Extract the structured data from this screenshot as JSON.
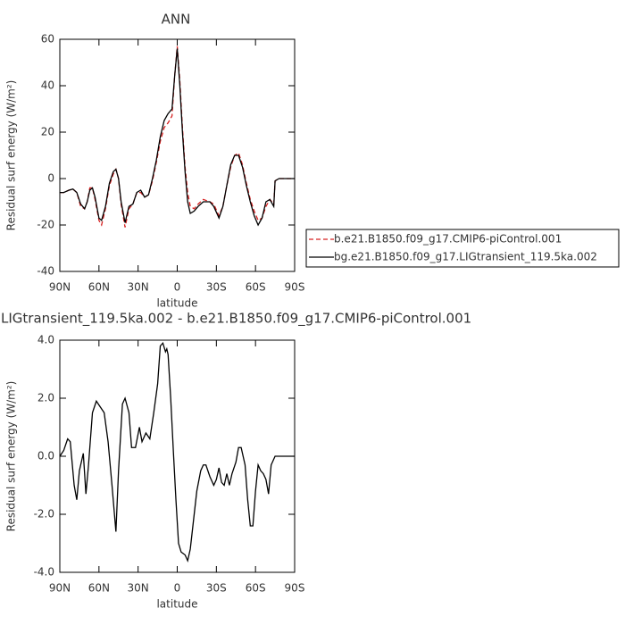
{
  "chart_data": [
    {
      "type": "line",
      "title": "ANN",
      "ylabel": "Residual surf energy (W/m²)",
      "xlabel": "latitude",
      "x": [
        90,
        87,
        83,
        80,
        77,
        74,
        71,
        69,
        67,
        65,
        63,
        60,
        58,
        55,
        52,
        49,
        47,
        45,
        43,
        40,
        37,
        34,
        31,
        28,
        25,
        22,
        19,
        16,
        13,
        10,
        7,
        4,
        2,
        0,
        -2,
        -4,
        -6,
        -8,
        -10,
        -13,
        -16,
        -20,
        -25,
        -28,
        -32,
        -35,
        -38,
        -41,
        -44,
        -47,
        -50,
        -53,
        -56,
        -59,
        -62,
        -65,
        -68,
        -71,
        -74,
        -75,
        -78,
        -84,
        -90
      ],
      "series": [
        {
          "name": "b.e21.B1850.f09_g17.CMIP6-piControl.001",
          "color": "#d62020",
          "line_style": "dashed",
          "values": [
            -6,
            -6,
            -5,
            -4.5,
            -6,
            -12,
            -13,
            -10,
            -4,
            -4,
            -9,
            -18,
            -20,
            -13,
            -3,
            2,
            4,
            0,
            -11,
            -21,
            -13,
            -11,
            -6,
            -6,
            -8,
            -7,
            -1,
            7,
            16,
            22,
            24,
            27,
            44,
            57,
            42,
            22,
            5,
            -6,
            -12,
            -13,
            -11,
            -9,
            -10,
            -11,
            -16,
            -12,
            -3,
            5,
            10,
            11,
            6,
            -2,
            -9,
            -14,
            -18,
            -17,
            -12,
            -9,
            -11,
            -1,
            0,
            0,
            0
          ]
        },
        {
          "name": "bg.e21.B1850.f09_g17.LIGtransient_119.5ka.002",
          "color": "#000000",
          "line_style": "solid",
          "values": [
            -6,
            -6,
            -5,
            -4.5,
            -6,
            -11,
            -13,
            -10,
            -5,
            -4,
            -8,
            -17,
            -18,
            -12,
            -2,
            3,
            4,
            0,
            -10,
            -19,
            -12,
            -11,
            -6,
            -5,
            -8,
            -7,
            0,
            8,
            18,
            25,
            28,
            30,
            44,
            56,
            40,
            20,
            3,
            -10,
            -15,
            -14,
            -12,
            -10,
            -10,
            -12,
            -17,
            -12,
            -3,
            6,
            10,
            10,
            5,
            -3,
            -10,
            -16,
            -20,
            -17,
            -10,
            -9,
            -12,
            -1,
            0,
            0,
            0
          ]
        }
      ],
      "xlim": [
        90,
        -90
      ],
      "xticks": [
        {
          "value": 90,
          "label": "90N"
        },
        {
          "value": 60,
          "label": "60N"
        },
        {
          "value": 30,
          "label": "30N"
        },
        0,
        {
          "value": -30,
          "label": "30S"
        },
        {
          "value": -60,
          "label": "60S"
        },
        {
          "value": -90,
          "label": "90S"
        }
      ],
      "ylim": [
        -40,
        60
      ],
      "yticks": [
        -40,
        -20,
        0,
        20,
        40,
        60
      ],
      "legend": "right"
    },
    {
      "type": "line",
      "title": "LIGtransient_119.5ka.002 - b.e21.B1850.f09_g17.CMIP6-piControl.001",
      "ylabel": "Residual surf energy (W/m²)",
      "xlabel": "latitude",
      "x": [
        90,
        87,
        84,
        82,
        79,
        77,
        75,
        72,
        70,
        68,
        65,
        62,
        59,
        56,
        53,
        50,
        47,
        45,
        42,
        40,
        37,
        35,
        32,
        29,
        27,
        24,
        21,
        18,
        15,
        13,
        11,
        9,
        8,
        7,
        5,
        3,
        1,
        -1,
        -3,
        -6,
        -8,
        -10,
        -13,
        -15,
        -18,
        -20,
        -22,
        -25,
        -28,
        -30,
        -32,
        -34,
        -36,
        -38,
        -40,
        -42,
        -45,
        -47,
        -49,
        -52,
        -54,
        -56,
        -58,
        -60,
        -62,
        -64,
        -66,
        -68,
        -70,
        -72,
        -75,
        -78,
        -90
      ],
      "values": [
        0,
        0.2,
        0.6,
        0.5,
        -1,
        -1.5,
        -0.5,
        0.1,
        -1.3,
        -0.3,
        1.5,
        1.9,
        1.7,
        1.5,
        0.5,
        -1,
        -2.6,
        -0.5,
        1.8,
        2,
        1.5,
        0.3,
        0.3,
        1,
        0.5,
        0.8,
        0.6,
        1.5,
        2.5,
        3.8,
        3.9,
        3.6,
        3.7,
        3.5,
        2,
        0.2,
        -1.5,
        -3,
        -3.3,
        -3.4,
        -3.6,
        -3.2,
        -2,
        -1.2,
        -0.5,
        -0.3,
        -0.3,
        -0.7,
        -1,
        -0.8,
        -0.4,
        -0.9,
        -1,
        -0.6,
        -1,
        -0.6,
        -0.2,
        0.3,
        0.3,
        -0.3,
        -1.5,
        -2.4,
        -2.4,
        -1.2,
        -0.3,
        -0.5,
        -0.6,
        -0.8,
        -1.3,
        -0.3,
        0,
        0,
        0
      ],
      "color": "#000000",
      "xlim": [
        90,
        -90
      ],
      "xticks": [
        {
          "value": 90,
          "label": "90N"
        },
        {
          "value": 60,
          "label": "60N"
        },
        {
          "value": 30,
          "label": "30N"
        },
        0,
        {
          "value": -30,
          "label": "30S"
        },
        {
          "value": -60,
          "label": "60S"
        },
        {
          "value": -90,
          "label": "90S"
        }
      ],
      "ylim": [
        -4,
        4
      ],
      "yticks": [
        {
          "value": -4,
          "label": "-4.0"
        },
        {
          "value": -2,
          "label": "-2.0"
        },
        {
          "value": 0,
          "label": "0.0"
        },
        {
          "value": 2,
          "label": "2.0"
        },
        {
          "value": 4,
          "label": "4.0"
        }
      ]
    }
  ]
}
